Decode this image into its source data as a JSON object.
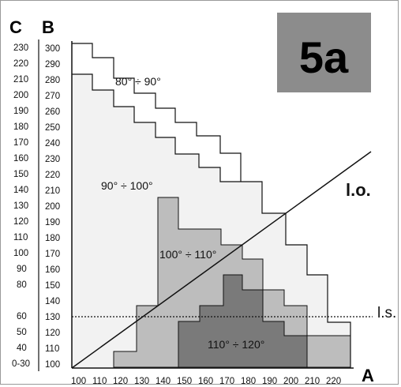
{
  "badge": {
    "text": "5a",
    "bg_color": "#8c8c8c"
  },
  "axes": {
    "col_c_header": "C",
    "col_b_header": "B",
    "x_axis_label": "A",
    "c_labels": [
      "230",
      "220",
      "210",
      "200",
      "190",
      "180",
      "170",
      "160",
      "150",
      "140",
      "130",
      "120",
      "110",
      "100",
      "90",
      "80",
      "60",
      "50",
      "40",
      "0-30"
    ],
    "b_labels": [
      "300",
      "290",
      "280",
      "270",
      "260",
      "250",
      "240",
      "230",
      "220",
      "210",
      "200",
      "190",
      "180",
      "170",
      "160",
      "150",
      "140",
      "130",
      "120",
      "110",
      "100"
    ],
    "a_labels": [
      "100",
      "110",
      "120",
      "130",
      "140",
      "150",
      "160",
      "170",
      "180",
      "190",
      "200",
      "210",
      "220"
    ]
  },
  "zones": [
    {
      "label": "80° ÷ 90°",
      "fill": "#ffffff"
    },
    {
      "label": "90° ÷ 100°",
      "fill": "#f2f2f2"
    },
    {
      "label": "100° ÷ 110°",
      "fill": "#bdbdbd"
    },
    {
      "label": "110° ÷ 120°",
      "fill": "#7a7a7a"
    }
  ],
  "lines": {
    "lo_label": "l.o.",
    "ls_label": "l.s."
  }
}
